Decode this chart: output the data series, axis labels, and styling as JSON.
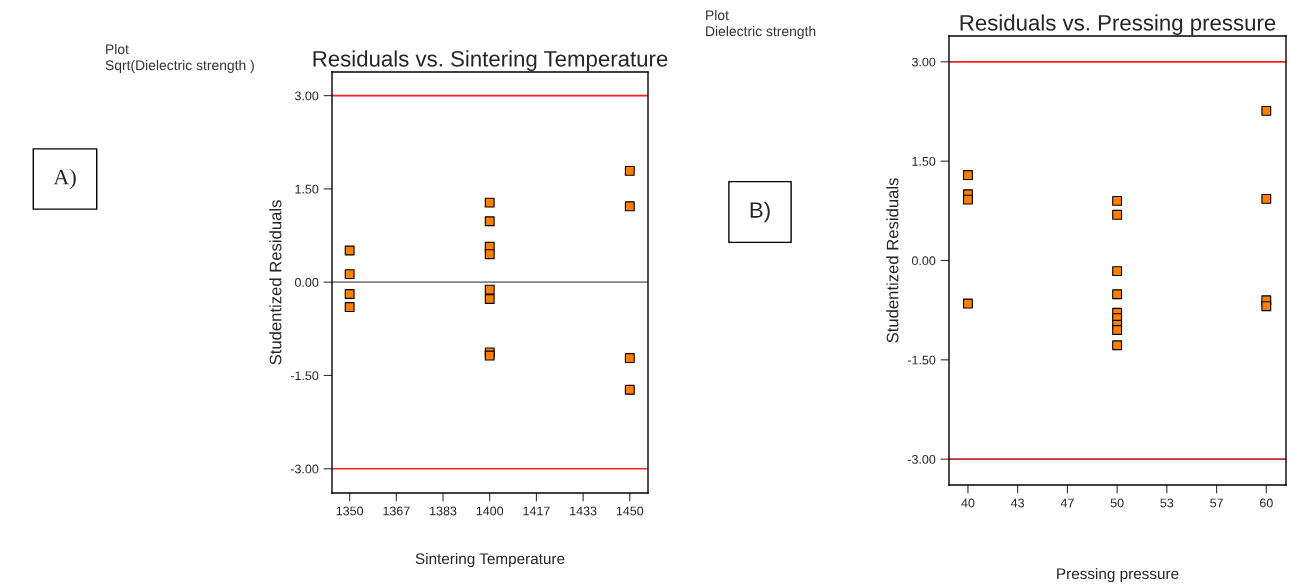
{
  "chart_data": [
    {
      "type": "scatter",
      "title": "Residuals vs. Sintering Temperature",
      "xlabel": "Sintering Temperature",
      "ylabel": "Studentized Residuals",
      "annotations": [
        "Plot",
        "Sqrt(Dielectric strength )",
        "A)"
      ],
      "x": [
        1350,
        1350,
        1350,
        1350,
        1400,
        1400,
        1400,
        1400,
        1400,
        1400,
        1400,
        1400,
        1450,
        1450,
        1450,
        1450
      ],
      "series": [
        {
          "color": "#ff8000",
          "values": [
            0.51,
            0.13,
            -0.19,
            -0.4,
            1.28,
            0.98,
            0.57,
            0.45,
            -0.12,
            -0.27,
            -1.13,
            -1.18,
            1.79,
            1.22,
            -1.22,
            -1.73
          ]
        }
      ],
      "marker": "square",
      "grid": false,
      "xlim": [
        1343.7,
        1456.5
      ],
      "xticks": [
        1350,
        {
          "value": 1366.67,
          "label": "1367"
        },
        {
          "value": 1383.33,
          "label": "1383"
        },
        1400,
        {
          "value": 1416.67,
          "label": "1417"
        },
        {
          "value": 1433.33,
          "label": "1433"
        },
        1450
      ],
      "ylim": [
        -3.39,
        3.38
      ],
      "yticks": [
        {
          "value": -3,
          "label": "-3.00"
        },
        {
          "value": -1.5,
          "label": "-1.50"
        },
        {
          "value": 0,
          "label": "0.00"
        },
        {
          "value": 1.5,
          "label": "1.50"
        },
        {
          "value": 3,
          "label": "3.00"
        }
      ],
      "ref_lines": [
        {
          "axis": "y",
          "value": 3,
          "color": "#ff2020"
        },
        {
          "axis": "y",
          "value": -3,
          "color": "#ff2020"
        },
        {
          "axis": "y",
          "value": 0,
          "color": "#808080"
        }
      ]
    },
    {
      "type": "scatter",
      "title": "Residuals vs. Pressing pressure",
      "xlabel": "Pressing pressure",
      "ylabel": "Studentized Residuals",
      "annotations": [
        "Plot",
        "Dielectric strength",
        "B)"
      ],
      "x": [
        40,
        40,
        40,
        40,
        50,
        50,
        50,
        50,
        50,
        50,
        50,
        50,
        50,
        60,
        60,
        60,
        60
      ],
      "series": [
        {
          "color": "#ff8000",
          "values": [
            1.29,
            1.0,
            0.92,
            -0.65,
            0.9,
            0.69,
            -0.16,
            -0.51,
            -0.79,
            -0.87,
            -0.97,
            -1.05,
            -1.28,
            2.26,
            0.93,
            -0.6,
            -0.69
          ]
        }
      ],
      "marker": "square",
      "grid": false,
      "xlim": [
        38.73,
        61.32
      ],
      "xticks": [
        40,
        {
          "value": 43.33,
          "label": "43"
        },
        {
          "value": 46.67,
          "label": "47"
        },
        50,
        {
          "value": 53.33,
          "label": "53"
        },
        {
          "value": 56.67,
          "label": "57"
        },
        60
      ],
      "ylim": [
        -3.39,
        3.39
      ],
      "yticks": [
        {
          "value": -3,
          "label": "-3.00"
        },
        {
          "value": -1.5,
          "label": "-1.50"
        },
        {
          "value": 0,
          "label": "0.00"
        },
        {
          "value": 1.5,
          "label": "1.50"
        },
        {
          "value": 3,
          "label": "3.00"
        }
      ],
      "ref_lines": [
        {
          "axis": "y",
          "value": 3,
          "color": "#ff2020"
        },
        {
          "axis": "y",
          "value": -3,
          "color": "#c03030"
        }
      ]
    }
  ]
}
